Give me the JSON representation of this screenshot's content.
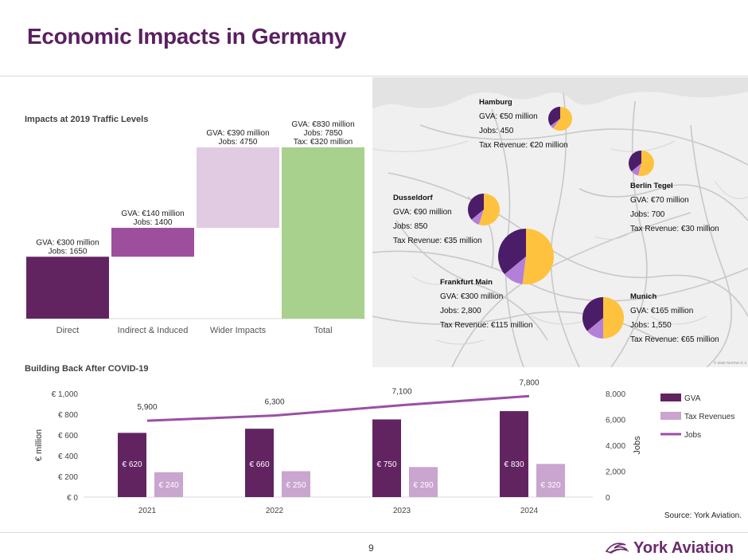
{
  "page": {
    "title": "Economic Impacts in Germany",
    "page_number": "9",
    "source": "Source: York Aviation.",
    "logo_text": "York Aviation"
  },
  "impacts": {
    "title": "Impacts at 2019 Traffic Levels",
    "bars": [
      {
        "category": "Direct",
        "start": 0,
        "end": 300,
        "label_lines": [
          "GVA: €300 million",
          "Jobs: 1650"
        ],
        "color": "#622461"
      },
      {
        "category": "Indirect & Induced",
        "start": 300,
        "end": 440,
        "label_lines": [
          "GVA: €140 million",
          "Jobs: 1400"
        ],
        "color": "#9d4f9e"
      },
      {
        "category": "Wider Impacts",
        "start": 440,
        "end": 830,
        "label_lines": [
          "GVA: €390 million",
          "Jobs: 4750"
        ],
        "color": "#e1cbe3"
      },
      {
        "category": "Total",
        "start": 0,
        "end": 830,
        "label_lines": [
          "GVA: €830 million",
          "Jobs: 7850",
          "Tax: €320 million"
        ],
        "color": "#a9d18e"
      }
    ]
  },
  "map": {
    "airports": [
      {
        "name": "Hamburg",
        "lines": [
          "GVA: €50 million",
          "Jobs: 450",
          "Tax Revenue: €20 million"
        ],
        "r": 15,
        "shares": [
          0.35,
          0.05,
          0.6
        ]
      },
      {
        "name": "Berlin Tegel",
        "lines": [
          "GVA: €70 million",
          "Jobs: 700",
          "Tax Revenue: €30 million"
        ],
        "r": 16,
        "shares": [
          0.36,
          0.1,
          0.54
        ]
      },
      {
        "name": "Dusseldorf",
        "lines": [
          "GVA: €90 million",
          "Jobs: 850",
          "Tax Revenue: €35 million"
        ],
        "r": 20,
        "shares": [
          0.36,
          0.09,
          0.55
        ]
      },
      {
        "name": "Frankfurt Main",
        "lines": [
          "GVA: €300 million",
          "Jobs: 2,800",
          "Tax Revenue: €115 million"
        ],
        "r": 35,
        "shares": [
          0.36,
          0.12,
          0.52
        ]
      },
      {
        "name": "Munich",
        "lines": [
          "GVA: €165 million",
          "Jobs: 1,550",
          "Tax Revenue: €65 million"
        ],
        "r": 26,
        "shares": [
          0.36,
          0.14,
          0.5
        ]
      }
    ],
    "attribution": "© 2020 TomTom © 2",
    "colors": {
      "gva": "#4b1d68",
      "jobs": "#b47fd8",
      "tax": "#ffc23e"
    }
  },
  "chart_data": {
    "type": "bar",
    "title": "Building Back After COVID-19",
    "categories": [
      "2021",
      "2022",
      "2023",
      "2024"
    ],
    "series": [
      {
        "name": "GVA",
        "type": "bar",
        "axis": "left",
        "color": "#622461",
        "values": [
          620,
          660,
          750,
          830
        ],
        "labels": [
          "€ 620",
          "€ 660",
          "€ 750",
          "€ 830"
        ]
      },
      {
        "name": "Tax Revenues",
        "type": "bar",
        "axis": "left",
        "color": "#c9a5cf",
        "values": [
          240,
          250,
          290,
          320
        ],
        "labels": [
          "€ 240",
          "€ 250",
          "€ 290",
          "€ 320"
        ]
      },
      {
        "name": "Jobs",
        "type": "line",
        "axis": "right",
        "color": "#9a50a4",
        "values": [
          5900,
          6300,
          7100,
          7800
        ],
        "labels": [
          "5,900",
          "6,300",
          "7,100",
          "7,800"
        ]
      }
    ],
    "ylabel": "€ million",
    "y2label": "Jobs",
    "ylim": [
      0,
      1000
    ],
    "y2lim": [
      0,
      8000
    ],
    "yticks": [
      "€ 0",
      "€ 200",
      "€ 400",
      "€ 600",
      "€ 800",
      "€ 1,000"
    ],
    "y2ticks": [
      "0",
      "2,000",
      "4,000",
      "6,000",
      "8,000"
    ],
    "grid": false,
    "legend": "right"
  }
}
